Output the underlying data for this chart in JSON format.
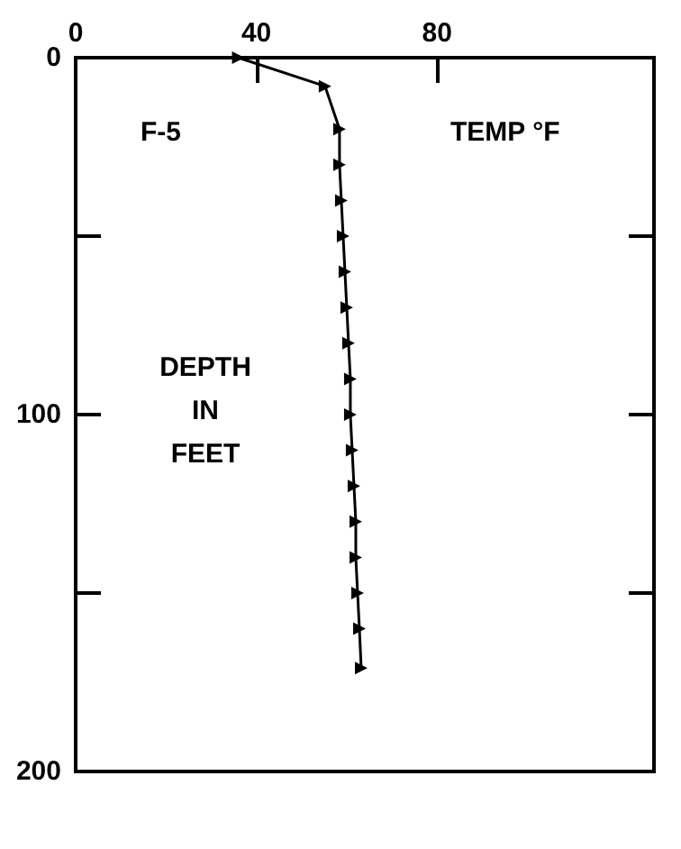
{
  "chart_data": {
    "type": "line",
    "xlabel": "TEMP °F",
    "ylabel": "DEPTH IN FEET",
    "annotations": [
      "F-5"
    ],
    "x": [
      36,
      55.2,
      58.4,
      58.4,
      58.8,
      59.2,
      59.6,
      60,
      60.4,
      60.8,
      60.8,
      61.2,
      61.6,
      62,
      62,
      62.4,
      62.8,
      63.2
    ],
    "series": [
      {
        "color": "#000000",
        "values": [
          0,
          8,
          20,
          30,
          40,
          50,
          60,
          70,
          80,
          90,
          100,
          110,
          120,
          130,
          140,
          150,
          160,
          171
        ]
      }
    ],
    "xlim": [
      0,
      128
    ],
    "xticks": [
      0,
      40,
      80
    ],
    "ylim": [
      200,
      0
    ],
    "yticks": [
      0,
      {
        "value": 50,
        "label": null
      },
      100,
      {
        "value": 150,
        "label": null
      },
      200
    ],
    "grid": false,
    "marker": "triangle",
    "line_style": "solid"
  }
}
